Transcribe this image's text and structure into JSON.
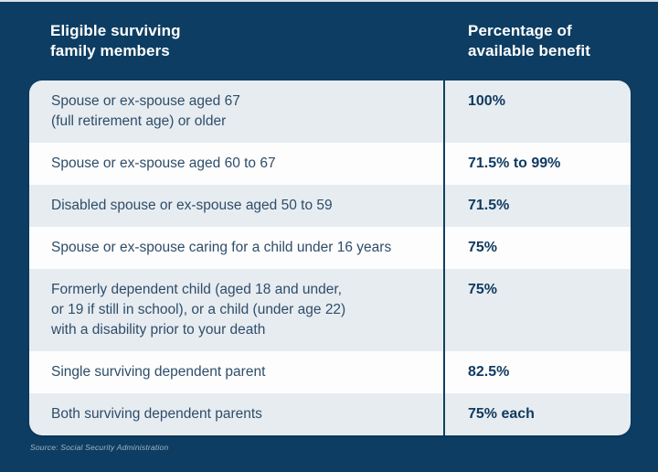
{
  "page": {
    "background_color": "#0d3d62",
    "source_note": "Source: Social Security Administration"
  },
  "header": {
    "left_title": "Eligible surviving\nfamily members",
    "right_title": "Percentage of\navailable benefit"
  },
  "colors": {
    "background": "#0d3d62",
    "row_light": "#e7ecf1",
    "row_white": "#fdfdfe",
    "divider": "#11405f",
    "member_text": "#2e4d69",
    "benefit_text": "#0f3a5f",
    "header_text": "#ffffff"
  },
  "chart_data": {
    "type": "table",
    "title": "",
    "columns": [
      "Eligible surviving family members",
      "Percentage of available benefit"
    ],
    "rows": [
      {
        "member": "Spouse or ex-spouse aged 67\n(full retirement age) or older",
        "benefit": "100%"
      },
      {
        "member": "Spouse or ex-spouse aged 60 to 67",
        "benefit": "71.5% to 99%"
      },
      {
        "member": "Disabled spouse or ex-spouse aged 50 to 59",
        "benefit": "71.5%"
      },
      {
        "member": "Spouse or ex-spouse caring for a child under 16 years",
        "benefit": "75%"
      },
      {
        "member": "Formerly dependent child (aged 18 and under,\nor 19 if still in school), or a child (under age 22)\nwith a disability prior to your death",
        "benefit": "75%"
      },
      {
        "member": "Single surviving dependent parent",
        "benefit": "82.5%"
      },
      {
        "member": "Both surviving dependent parents",
        "benefit": "75% each"
      }
    ]
  }
}
